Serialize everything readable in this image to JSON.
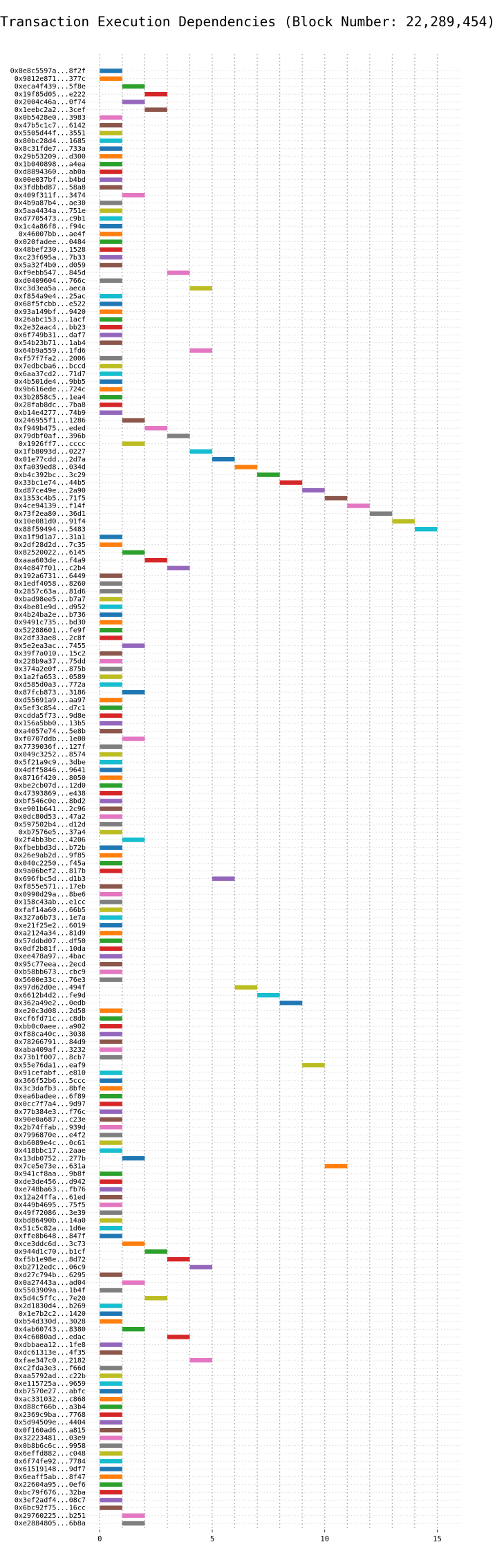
{
  "chart_data": {
    "type": "gantt",
    "title": "Transaction Execution Dependencies (Block Number: 22,289,454)",
    "xlabel": "",
    "ylabel": "",
    "xlim": [
      -0.5,
      16.0
    ],
    "x_ticks": [
      0,
      5,
      10,
      15
    ],
    "grid": true,
    "legend": "none",
    "categories": [
      "0x8e8c5597a...8f2f",
      "0x9812e871...377c",
      "0xeca4f439...5f8e",
      "0x19f85d05...e222",
      "0x2004c46a...0f74",
      "0x1eebc2a2...3cef",
      "0x0b5428e0...3983",
      "0x47b5c1c7...6142",
      "0x5505d44f...3551",
      "0x80bc28d4...1685",
      "0x8c31fde7...733a",
      "0x29b53209...d300",
      "0x1b040898...a4ea",
      "0xd8894360...ab0a",
      "0x00e037bf...b4bd",
      "0x3fdbbd87...58a8",
      "0x409f311f...3474",
      "0x4b9a87b4...ae30",
      "0x5aa4434a...751e",
      "0xd7705473...c9b1",
      "0x1c4a86f8...f94c",
      "0x46007bb...ae4f",
      "0x020fadee...0484",
      "0x48bef230...1528",
      "0xc23f695a...7b33",
      "0x5a32f4b0...d059",
      "0xf9ebb547...845d",
      "0xd0409604...766c",
      "0xc3d3ea5a...aeca",
      "0xf854a9e4...25ac",
      "0x68f5fcbb...e522",
      "0x93a149bf...9420",
      "0x26abc153...1acf",
      "0x2e32aac4...bb23",
      "0x6f749b31...daf7",
      "0x54b23b71...1ab4",
      "0x64b9a559...1fd6",
      "0xf57f7fa2...2006",
      "0x7edbcba6...bccd",
      "0x6aa37cd2...71d7",
      "0x4b501de4...9bb5",
      "0x9b616ede...724c",
      "0x3b2858c5...1ea4",
      "0x28fab8dc...7ba8",
      "0xb14e4277...74b9",
      "0x246955f1...1286",
      "0xf949b475...eded",
      "0x79dbf0af...396b",
      "0x1926ff7...cccc",
      "0x1fb8093d...0227",
      "0x01e77cdd...2d7a",
      "0xfa039ed8...034d",
      "0xb4c392bc...3c29",
      "0x33bc1e74...44b5",
      "0xd87ce49e...2a90",
      "0x1353c4b5...71f5",
      "0x4ce94139...f14f",
      "0x73f2ea80...36d1",
      "0x10e081d0...91f4",
      "0x88f59494...5483",
      "0xa1f9d1a7...31a1",
      "0x2df28d2d...7c35",
      "0x82520022...6145",
      "0xaaa603de...f4a9",
      "0x4e847f01...c2b4",
      "0x192a6731...6449",
      "0x1edf4058...8260",
      "0x2857c63a...81d6",
      "0xbad98ee5...b7a7",
      "0x4be01e9d...d952",
      "0x4b24ba2e...b736",
      "0x9491c735...bd30",
      "0x52288601...fe9f",
      "0x2df33ae8...2c8f",
      "0x5e2ea3ac...7455",
      "0x39f7a010...15c2",
      "0x228b9a37...75dd",
      "0x374a2e0f...875b",
      "0x1a2fa653...0589",
      "0xd585d0a3...772a",
      "0x87fcb873...3186",
      "0xd55691a9...aa97",
      "0x5ef3c854...d7c1",
      "0xcdda5f73...9d8e",
      "0x156a5bb0...13b5",
      "0xa4057e74...5e8b",
      "0xf0707ddb...1e00",
      "0x7739036f...127f",
      "0x049c3252...8574",
      "0x5f21a9c9...3dbe",
      "0x4dff5846...9641",
      "0x8716f420...8050",
      "0xbe2cb07d...12d0",
      "0x47393869...e438",
      "0xbf546c0e...8bd2",
      "0xe901b641...2c96",
      "0x0dc80d53...47a2",
      "0x597502b4...d12d",
      "0xb7576e5...37a4",
      "0x2f4bb3bc...4206",
      "0xfbebbd3d...b72b",
      "0x26e9ab2d...9f85",
      "0x040c2250...f45a",
      "0x9a06bef2...817b",
      "0x696fbc5d...d1b3",
      "0xf855e571...17eb",
      "0x0990d29a...8be6",
      "0x158c43ab...e1cc",
      "0xfaf14a60...66b5",
      "0x327a6b73...1e7a",
      "0xe21f25e2...6019",
      "0xa2124a34...81d9",
      "0x57ddbd07...df50",
      "0x0df2b81f...10da",
      "0xee478a97...4bac",
      "0x95c77eea...2ecd",
      "0xb58bb673...cbc9",
      "0x5600e33c...76e3",
      "0x97d62d0e...494f",
      "0x6612b4d2...fe9d",
      "0x362a49e2...0edb",
      "0xe20c3d08...2d58",
      "0xcf6fd71c...c8db",
      "0xbb0c0aee...a902",
      "0xf88ca40c...3038",
      "0x78266791...84d9",
      "0xaba409af...3232",
      "0x73b1f007...8cb7",
      "0x55e76da1...eaf9",
      "0x91cefabf...e810",
      "0x366f52b6...5ccc",
      "0x3c3dafb3...8bfe",
      "0xea6badee...6f89",
      "0x0cc7f7a4...9d97",
      "0x77b384e3...f76c",
      "0x90e0a687...c23e",
      "0x2b74ffab...939d",
      "0x7996870e...e4f2",
      "0xb6089e4c...0c61",
      "0x418bbc17...2aae",
      "0x13db0752...277b",
      "0x7ce5e73e...631a",
      "0x941cf8aa...9b8f",
      "0xde3de456...d942",
      "0xe748ba63...fb76",
      "0x12a24ffa...61ed",
      "0x449b4695...75f5",
      "0x49f72086...3e39",
      "0xbd86490b...14a0",
      "0x51c5c82a...1d6e",
      "0xffe8b648...847f",
      "0xce3ddc6d...3c73",
      "0x944d1c70...b1cf",
      "0xf5b1e98e...8d72",
      "0xb2712edc...06c9",
      "0xd27c794b...6295",
      "0x0a27443a...ad04",
      "0x5503909a...1b4f",
      "0x5d4c5ffc...7e20",
      "0x2d1830d4...b269",
      "0x1e7b2c2...1420",
      "0xb54d330d...3028",
      "0x4ab60743...8380",
      "0x4c6080ad...edac",
      "0xdbbaea12...1fe8",
      "0xdc61313e...4f35",
      "0xfae347c0...2182",
      "0xc2fda3e3...f66d",
      "0xaa5792ad...c22b",
      "0xe115725a...9659",
      "0xb7570e27...abfc",
      "0xac331032...c868",
      "0xd88cf66b...a3b4",
      "0x2369c9ba...7768",
      "0x5d94509e...4404",
      "0x0f160ad6...a815",
      "0x32223481...03e9",
      "0x0b8b6c6c...9958",
      "0x6effd882...c048",
      "0x6f74fe92...7784",
      "0x61519148...9df7",
      "0x6eaff5ab...8f47",
      "0x22604a95...0ef6",
      "0xbc79f676...32ba",
      "0x3ef2adf4...08c7",
      "0x6bc92f75...16cc",
      "0x29760225...b251",
      "0xe2884805...6b8a"
    ],
    "starts": [
      0,
      0,
      1,
      2,
      1,
      2,
      0,
      0,
      0,
      0,
      0,
      0,
      0,
      0,
      0,
      0,
      1,
      0,
      0,
      0,
      0,
      0,
      0,
      0,
      0,
      0,
      3,
      0,
      4,
      0,
      0,
      0,
      0,
      0,
      0,
      0,
      4,
      0,
      0,
      0,
      0,
      0,
      0,
      0,
      0,
      1,
      2,
      3,
      1,
      4,
      5,
      6,
      7,
      8,
      9,
      10,
      11,
      12,
      13,
      14,
      0,
      0,
      1,
      2,
      3,
      0,
      0,
      0,
      0,
      0,
      0,
      0,
      0,
      0,
      1,
      0,
      0,
      0,
      0,
      0,
      1,
      0,
      0,
      0,
      0,
      0,
      1,
      0,
      0,
      0,
      0,
      0,
      0,
      0,
      0,
      0,
      0,
      0,
      0,
      1,
      0,
      0,
      0,
      0,
      5,
      0,
      0,
      0,
      0,
      0,
      0,
      0,
      0,
      0,
      0,
      0,
      0,
      0,
      6,
      7,
      8,
      0,
      0,
      0,
      0,
      0,
      0,
      0,
      9,
      0,
      0,
      0,
      0,
      0,
      0,
      0,
      0,
      0,
      0,
      0,
      1,
      10,
      0,
      0,
      0,
      0,
      0,
      0,
      0,
      0,
      0,
      1,
      2,
      3,
      4,
      0,
      1,
      0,
      2,
      0,
      0,
      0,
      1,
      3,
      0,
      0,
      4,
      0,
      0,
      0,
      0,
      0,
      0,
      0,
      0,
      0,
      0,
      0,
      0,
      0,
      0,
      0,
      0,
      0,
      0,
      0,
      1,
      1
    ],
    "duration": 1,
    "bar_colors": [
      "#1f77b4",
      "#ff7f0e",
      "#2ca02c",
      "#d62728",
      "#9467bd",
      "#8c564b",
      "#e377c2",
      "#8c564b",
      "#bcbd22",
      "#17becf",
      "#1f77b4",
      "#ff7f0e",
      "#2ca02c",
      "#d62728",
      "#9467bd",
      "#8c564b",
      "#e377c2",
      "#7f7f7f",
      "#bcbd22",
      "#17becf",
      "#1f77b4",
      "#ff7f0e",
      "#2ca02c",
      "#d62728",
      "#9467bd",
      "#8c564b",
      "#e377c2",
      "#7f7f7f",
      "#bcbd22",
      "#17becf",
      "#1f77b4",
      "#ff7f0e",
      "#2ca02c",
      "#d62728",
      "#9467bd",
      "#8c564b",
      "#e377c2",
      "#7f7f7f",
      "#bcbd22",
      "#17becf",
      "#1f77b4",
      "#ff7f0e",
      "#2ca02c",
      "#d62728",
      "#9467bd",
      "#8c564b",
      "#e377c2",
      "#7f7f7f",
      "#bcbd22",
      "#17becf",
      "#1f77b4",
      "#ff7f0e",
      "#2ca02c",
      "#d62728",
      "#9467bd",
      "#8c564b",
      "#e377c2",
      "#7f7f7f",
      "#bcbd22",
      "#17becf",
      "#1f77b4",
      "#ff7f0e",
      "#2ca02c",
      "#d62728",
      "#9467bd",
      "#8c564b",
      "#7f7f7f",
      "#7f7f7f",
      "#bcbd22",
      "#17becf",
      "#1f77b4",
      "#ff7f0e",
      "#2ca02c",
      "#d62728",
      "#9467bd",
      "#8c564b",
      "#e377c2",
      "#7f7f7f",
      "#bcbd22",
      "#17becf",
      "#1f77b4",
      "#ff7f0e",
      "#2ca02c",
      "#d62728",
      "#9467bd",
      "#8c564b",
      "#e377c2",
      "#7f7f7f",
      "#bcbd22",
      "#17becf",
      "#1f77b4",
      "#ff7f0e",
      "#2ca02c",
      "#d62728",
      "#9467bd",
      "#8c564b",
      "#e377c2",
      "#7f7f7f",
      "#bcbd22",
      "#17becf",
      "#1f77b4",
      "#ff7f0e",
      "#2ca02c",
      "#d62728",
      "#9467bd",
      "#8c564b",
      "#e377c2",
      "#7f7f7f",
      "#bcbd22",
      "#17becf",
      "#1f77b4",
      "#ff7f0e",
      "#2ca02c",
      "#d62728",
      "#9467bd",
      "#8c564b",
      "#e377c2",
      "#7f7f7f",
      "#bcbd22",
      "#17becf",
      "#1f77b4",
      "#ff7f0e",
      "#2ca02c",
      "#d62728",
      "#9467bd",
      "#8c564b",
      "#e377c2",
      "#7f7f7f",
      "#bcbd22",
      "#17becf",
      "#1f77b4",
      "#ff7f0e",
      "#2ca02c",
      "#d62728",
      "#9467bd",
      "#8c564b",
      "#e377c2",
      "#7f7f7f",
      "#bcbd22",
      "#17becf",
      "#1f77b4",
      "#ff7f0e",
      "#2ca02c",
      "#d62728",
      "#9467bd",
      "#8c564b",
      "#e377c2",
      "#7f7f7f",
      "#bcbd22",
      "#17becf",
      "#1f77b4",
      "#ff7f0e",
      "#2ca02c",
      "#d62728",
      "#9467bd",
      "#8c564b",
      "#e377c2",
      "#7f7f7f",
      "#bcbd22",
      "#17becf",
      "#1f77b4",
      "#ff7f0e",
      "#2ca02c",
      "#d62728",
      "#9467bd",
      "#8c564b",
      "#e377c2",
      "#7f7f7f",
      "#bcbd22",
      "#17becf",
      "#1f77b4",
      "#ff7f0e",
      "#2ca02c",
      "#d62728",
      "#9467bd",
      "#8c564b",
      "#e377c2",
      "#7f7f7f",
      "#bcbd22",
      "#17becf",
      "#1f77b4",
      "#ff7f0e",
      "#2ca02c",
      "#d62728",
      "#9467bd",
      "#8c564b",
      "#e377c2",
      "#7f7f7f"
    ]
  }
}
